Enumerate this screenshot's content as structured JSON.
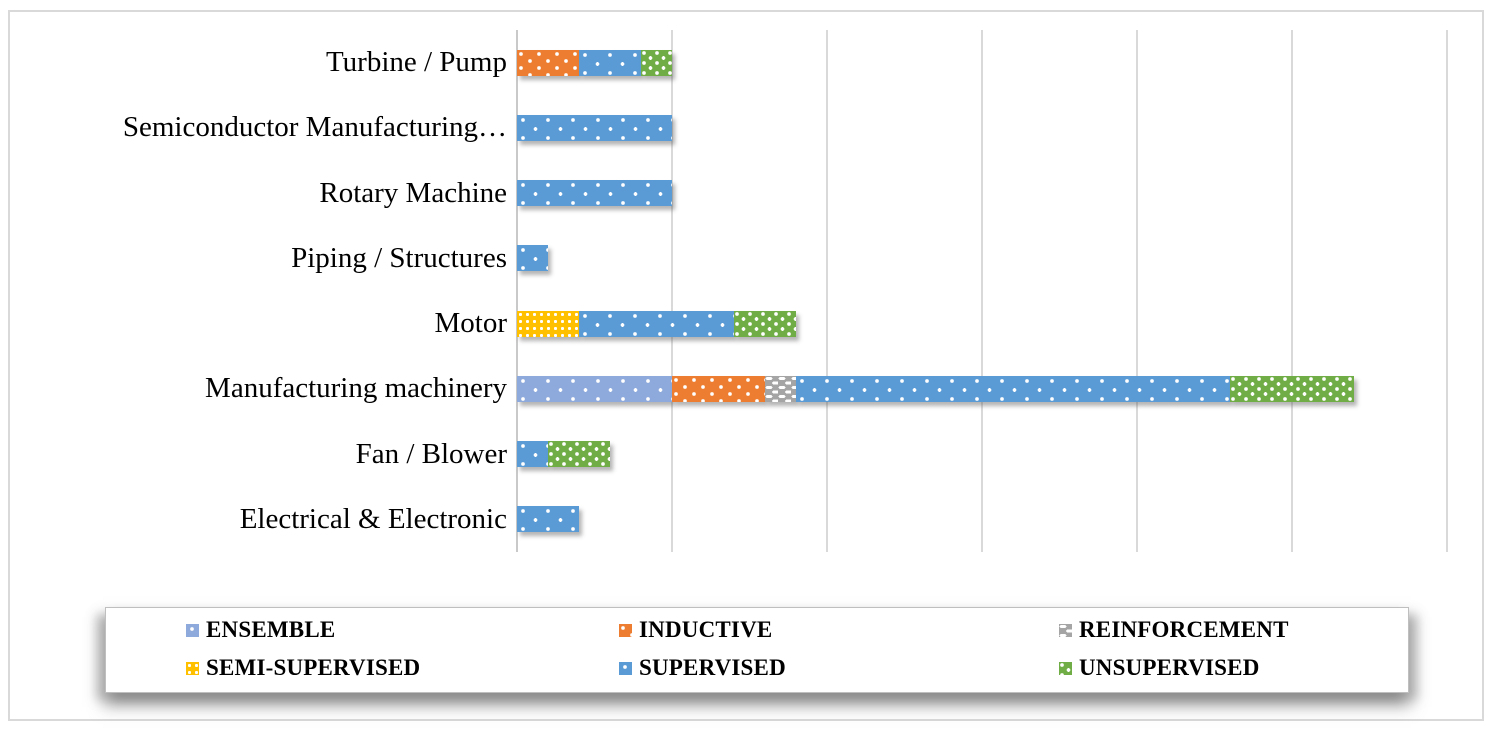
{
  "figure": {
    "background": "#FFFFFF",
    "frame_border_color": "#D9D9D9",
    "gridline_color": "#D9D9D9",
    "text_color": "#000000"
  },
  "chart_data": {
    "type": "bar",
    "orientation": "horizontal",
    "stacked": true,
    "title": "",
    "xlabel": "",
    "ylabel": "",
    "categories": [
      "Turbine / Pump",
      "Semiconductor Manufacturing…",
      "Rotary Machine",
      "Piping / Structures",
      "Motor",
      "Manufacturing machinery",
      "Fan / Blower",
      "Electrical & Electronic"
    ],
    "series": [
      {
        "name": "ENSEMBLE",
        "color": "#8EA9DB",
        "pattern": "sparse",
        "values": [
          0,
          0,
          0,
          0,
          0,
          5,
          0,
          0
        ]
      },
      {
        "name": "INDUCTIVE",
        "color": "#ED7D31",
        "pattern": "medium",
        "values": [
          2,
          0,
          0,
          0,
          0,
          3,
          0,
          0
        ]
      },
      {
        "name": "REINFORCEMENT",
        "color": "#A5A5A5",
        "pattern": "brick",
        "values": [
          0,
          0,
          0,
          0,
          0,
          1,
          0,
          0
        ]
      },
      {
        "name": "SEMI-SUPERVISED",
        "color": "#FFC000",
        "pattern": "grid",
        "values": [
          0,
          0,
          0,
          0,
          2,
          0,
          0,
          0
        ]
      },
      {
        "name": "SUPERVISED",
        "color": "#5B9BD5",
        "pattern": "sparse",
        "values": [
          2,
          5,
          5,
          1,
          5,
          14,
          1,
          2
        ]
      },
      {
        "name": "UNSUPERVISED",
        "color": "#70AD47",
        "pattern": "dense",
        "values": [
          1,
          0,
          0,
          0,
          2,
          4,
          2,
          0
        ]
      }
    ],
    "x_axis": {
      "min": 0,
      "max": 30,
      "gridline_step": 5,
      "tick_labels_visible": false
    },
    "y_axis": {
      "tick_labels_visible": true
    },
    "grid": true,
    "legend": {
      "position": "bottom",
      "rows": 2,
      "columns": 3
    }
  }
}
